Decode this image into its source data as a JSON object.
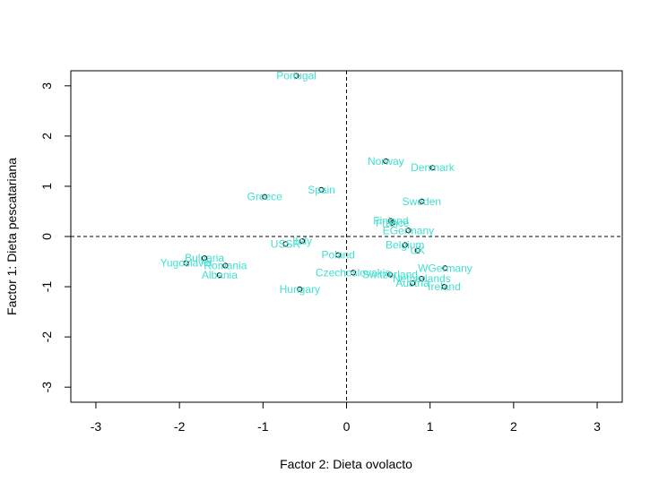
{
  "chart_data": {
    "type": "scatter",
    "xlabel": "Factor 2: Dieta ovolacto",
    "ylabel": "Factor 1: Dieta pescatariana",
    "xlim": [
      -3.3,
      3.3
    ],
    "ylim": [
      -3.3,
      3.3
    ],
    "xticks": [
      -3,
      -2,
      -1,
      0,
      1,
      2,
      3
    ],
    "yticks": [
      -3,
      -2,
      -1,
      0,
      1,
      2,
      3
    ],
    "grid": false,
    "reference_lines": {
      "x": 0,
      "y": 0,
      "style": "dashed"
    },
    "label_color": "#40E0D0",
    "point_color": "#000000",
    "points": [
      {
        "label": "Portugal",
        "x": -0.6,
        "y": 3.2
      },
      {
        "label": "Norway",
        "x": 0.47,
        "y": 1.5
      },
      {
        "label": "Denmark",
        "x": 1.03,
        "y": 1.37
      },
      {
        "label": "Spain",
        "x": -0.3,
        "y": 0.93
      },
      {
        "label": "Greece",
        "x": -0.98,
        "y": 0.79
      },
      {
        "label": "Sweden",
        "x": 0.9,
        "y": 0.7
      },
      {
        "label": "Finland",
        "x": 0.53,
        "y": 0.31
      },
      {
        "label": "France",
        "x": 0.55,
        "y": 0.27
      },
      {
        "label": "EGermany",
        "x": 0.74,
        "y": 0.12
      },
      {
        "label": "Italy",
        "x": -0.53,
        "y": -0.09
      },
      {
        "label": "USSR",
        "x": -0.73,
        "y": -0.15
      },
      {
        "label": "Belgium",
        "x": 0.7,
        "y": -0.17
      },
      {
        "label": "UK",
        "x": 0.85,
        "y": -0.28
      },
      {
        "label": "Poland",
        "x": -0.1,
        "y": -0.37
      },
      {
        "label": "Bulgaria",
        "x": -1.7,
        "y": -0.43
      },
      {
        "label": "Yugoslavia",
        "x": -1.92,
        "y": -0.53
      },
      {
        "label": "Romania",
        "x": -1.45,
        "y": -0.58
      },
      {
        "label": "WGermany",
        "x": 1.18,
        "y": -0.63
      },
      {
        "label": "Czechoslovakia",
        "x": 0.08,
        "y": -0.72
      },
      {
        "label": "Albania",
        "x": -1.52,
        "y": -0.77
      },
      {
        "label": "Switzerland",
        "x": 0.52,
        "y": -0.76
      },
      {
        "label": "Netherlands",
        "x": 0.9,
        "y": -0.84
      },
      {
        "label": "Austria",
        "x": 0.79,
        "y": -0.93
      },
      {
        "label": "Ireland",
        "x": 1.17,
        "y": -1.0
      },
      {
        "label": "Hungary",
        "x": -0.56,
        "y": -1.05
      }
    ]
  }
}
